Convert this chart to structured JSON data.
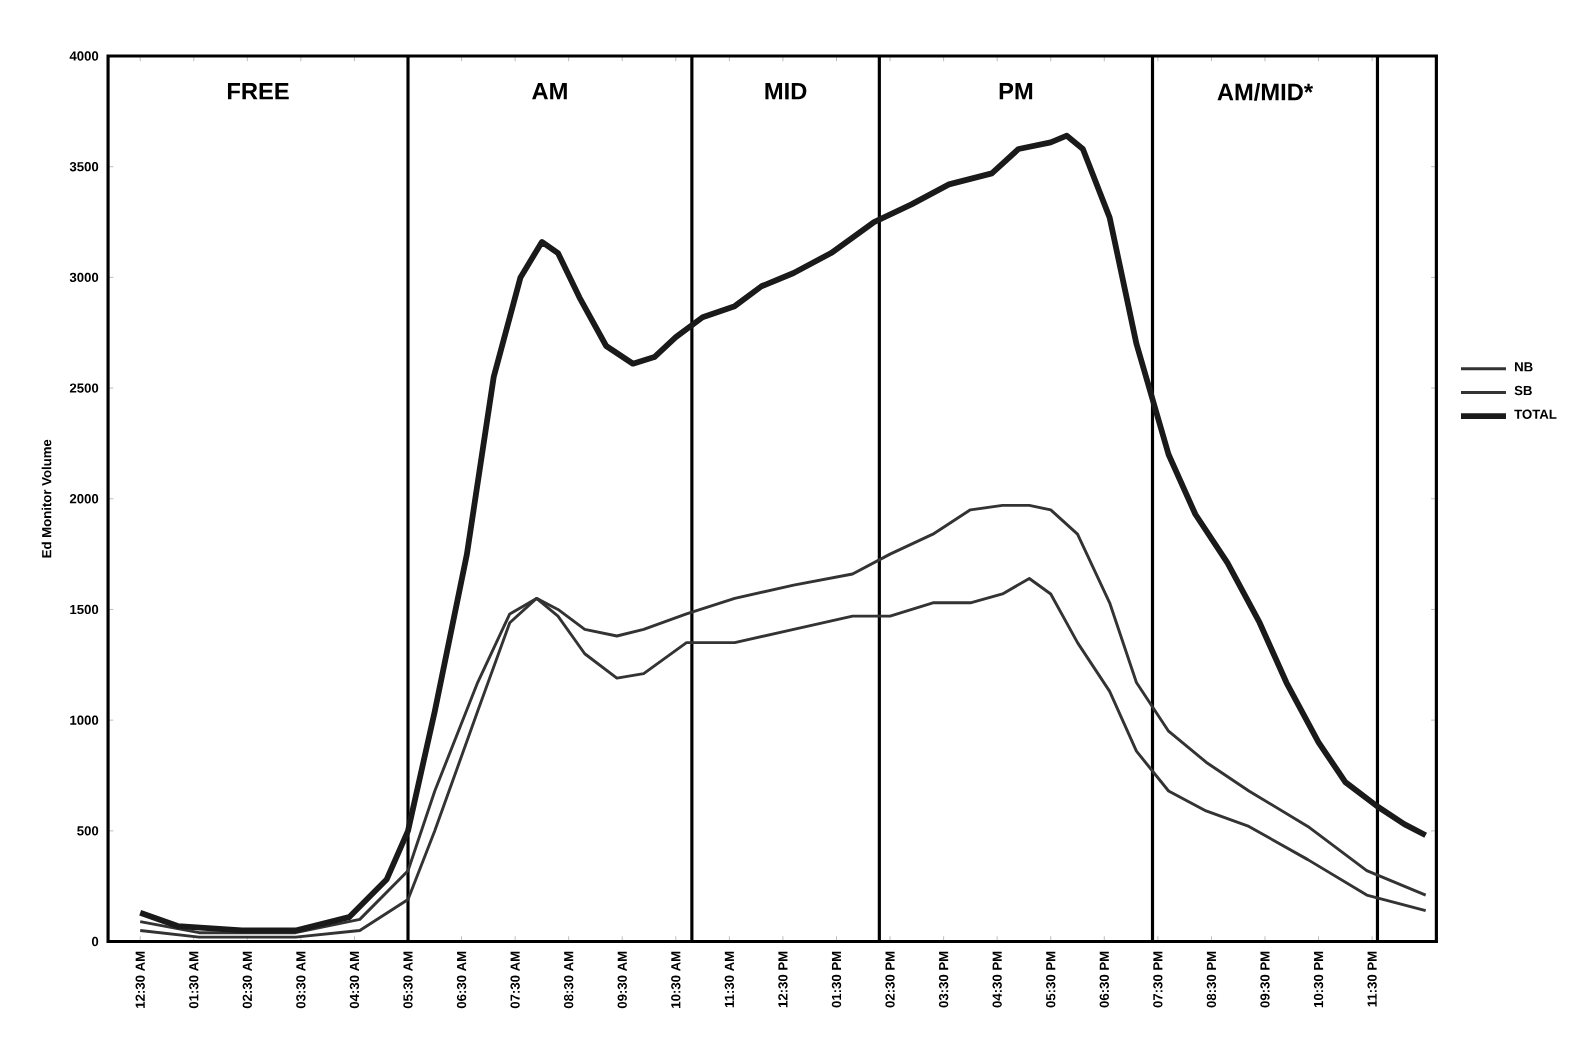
{
  "chart_data": {
    "type": "line",
    "ylabel": "Ed Monitor Volume",
    "xlim": [
      -0.1,
      24.7
    ],
    "xticks": [
      {
        "value": 0.5,
        "label": "12:30 AM"
      },
      {
        "value": 1.5,
        "label": "01:30 AM"
      },
      {
        "value": 2.5,
        "label": "02:30 AM"
      },
      {
        "value": 3.5,
        "label": "03:30 AM"
      },
      {
        "value": 4.5,
        "label": "04:30 AM"
      },
      {
        "value": 5.5,
        "label": "05:30 AM"
      },
      {
        "value": 6.5,
        "label": "06:30 AM"
      },
      {
        "value": 7.5,
        "label": "07:30 AM"
      },
      {
        "value": 8.5,
        "label": "08:30 AM"
      },
      {
        "value": 9.5,
        "label": "09:30 AM"
      },
      {
        "value": 10.5,
        "label": "10:30 AM"
      },
      {
        "value": 11.5,
        "label": "11:30 AM"
      },
      {
        "value": 12.5,
        "label": "12:30 PM"
      },
      {
        "value": 13.5,
        "label": "01:30 PM"
      },
      {
        "value": 14.5,
        "label": "02:30 PM"
      },
      {
        "value": 15.5,
        "label": "03:30 PM"
      },
      {
        "value": 16.5,
        "label": "04:30 PM"
      },
      {
        "value": 17.5,
        "label": "05:30 PM"
      },
      {
        "value": 18.5,
        "label": "06:30 PM"
      },
      {
        "value": 19.5,
        "label": "07:30 PM"
      },
      {
        "value": 20.5,
        "label": "08:30 PM"
      },
      {
        "value": 21.5,
        "label": "09:30 PM"
      },
      {
        "value": 22.5,
        "label": "10:30 PM"
      },
      {
        "value": 23.5,
        "label": "11:30 PM"
      }
    ],
    "ylim": [
      0,
      4000
    ],
    "yticks": [
      0,
      500,
      1000,
      1500,
      2000,
      2500,
      3000,
      3500,
      4000
    ],
    "legend": "right",
    "line_style": "solid",
    "ref_lines": [
      {
        "axis": "x",
        "value": 5.5
      },
      {
        "axis": "x",
        "value": 10.8
      },
      {
        "axis": "x",
        "value": 14.3
      },
      {
        "axis": "x",
        "value": 19.4
      },
      {
        "axis": "x",
        "value": 23.6
      }
    ],
    "annotations": [
      "FREE",
      "AM",
      "MID",
      "PM",
      "AM/MID*"
    ],
    "series": [
      {
        "name": "NB",
        "color": "#333333",
        "x": [
          0.5,
          1.6,
          3.4,
          4.6,
          5.5,
          6.0,
          6.8,
          7.4,
          7.9,
          8.3,
          8.8,
          9.4,
          9.9,
          10.7,
          11.6,
          12.7,
          13.8,
          14.5,
          15.3,
          16.0,
          16.6,
          17.1,
          17.5,
          18.0,
          18.6,
          19.1,
          19.7,
          20.4,
          21.2,
          22.3,
          23.4,
          24.5
        ],
        "values": [
          90,
          40,
          40,
          100,
          320,
          680,
          1170,
          1480,
          1550,
          1500,
          1410,
          1380,
          1410,
          1480,
          1550,
          1610,
          1660,
          1750,
          1840,
          1950,
          1970,
          1970,
          1950,
          1840,
          1530,
          1170,
          950,
          810,
          680,
          520,
          320,
          210
        ]
      },
      {
        "name": "SB",
        "color": "#333333",
        "x": [
          0.5,
          1.6,
          3.4,
          4.6,
          5.5,
          6.0,
          6.8,
          7.4,
          7.9,
          8.3,
          8.8,
          9.4,
          9.9,
          10.7,
          11.6,
          12.7,
          13.8,
          14.5,
          15.3,
          16.0,
          16.6,
          17.1,
          17.5,
          18.0,
          18.6,
          19.1,
          19.7,
          20.4,
          21.2,
          22.3,
          23.4,
          24.5
        ],
        "values": [
          50,
          20,
          20,
          50,
          190,
          500,
          1040,
          1440,
          1550,
          1470,
          1300,
          1190,
          1210,
          1350,
          1350,
          1410,
          1470,
          1470,
          1530,
          1530,
          1570,
          1640,
          1570,
          1350,
          1130,
          860,
          680,
          590,
          520,
          370,
          210,
          140
        ]
      },
      {
        "name": "TOTAL",
        "color": "#1a1a1a",
        "x": [
          0.5,
          1.2,
          2.4,
          3.4,
          4.4,
          5.1,
          5.5,
          6.0,
          6.6,
          7.1,
          7.6,
          8.0,
          8.3,
          8.7,
          9.2,
          9.7,
          10.1,
          10.5,
          11.0,
          11.6,
          12.1,
          12.7,
          13.4,
          14.2,
          14.9,
          15.6,
          16.4,
          16.9,
          17.5,
          17.8,
          18.1,
          18.6,
          19.1,
          19.7,
          20.2,
          20.8,
          21.4,
          21.9,
          22.5,
          23.0,
          23.6,
          24.1,
          24.5
        ],
        "values": [
          130,
          70,
          50,
          50,
          110,
          280,
          500,
          1040,
          1750,
          2550,
          3000,
          3160,
          3110,
          2910,
          2690,
          2610,
          2640,
          2730,
          2820,
          2870,
          2960,
          3020,
          3110,
          3250,
          3330,
          3420,
          3470,
          3580,
          3610,
          3640,
          3580,
          3270,
          2700,
          2200,
          1930,
          1710,
          1440,
          1170,
          900,
          720,
          610,
          530,
          480
        ]
      }
    ]
  }
}
